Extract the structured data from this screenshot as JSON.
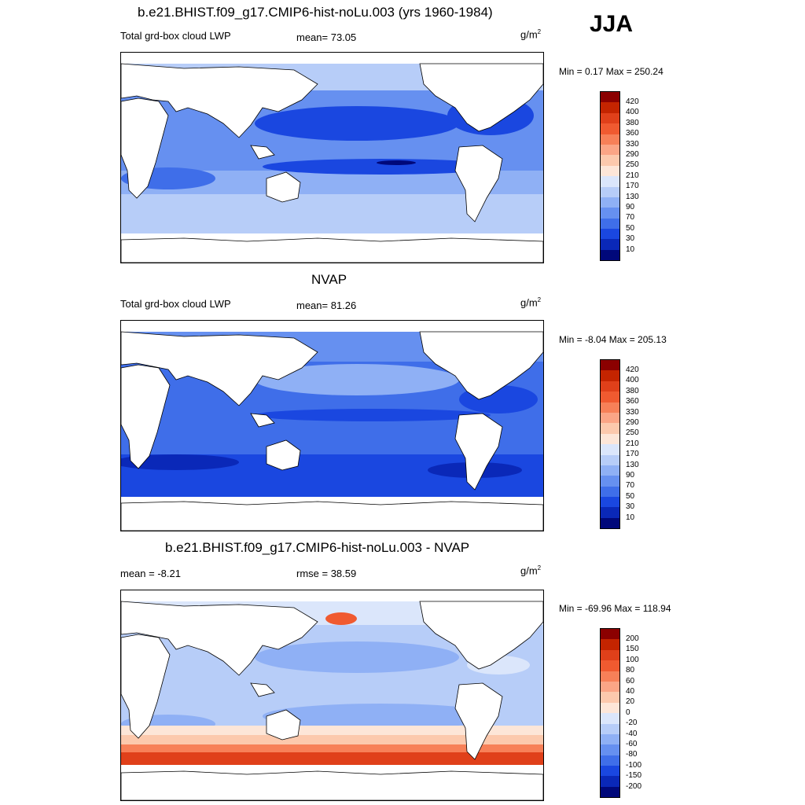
{
  "season": "JJA",
  "panels": [
    {
      "title": "b.e21.BHIST.f09_g17.CMIP6-hist-noLu.003 (yrs 1960-1984)",
      "left_label": "Total grd-box cloud LWP",
      "center_label": "mean=  73.05",
      "units": "g/m",
      "units_sup": "2",
      "minmax": "Min =   0.17 Max = 250.24",
      "colorbar_levels": [
        "420",
        "400",
        "380",
        "360",
        "330",
        "290",
        "250",
        "210",
        "170",
        "130",
        "90",
        "70",
        "50",
        "30",
        "10"
      ],
      "colors": [
        "#8b0000",
        "#c42400",
        "#e0401a",
        "#f05a30",
        "#f78058",
        "#fba586",
        "#fcc9ad",
        "#fde6d8",
        "#dbe6fb",
        "#b7cdf8",
        "#8fb0f5",
        "#6690f0",
        "#3f6ee9",
        "#1a47e0",
        "#0a28b8",
        "#00087a"
      ]
    },
    {
      "title": "NVAP",
      "left_label": "Total grd-box cloud LWP",
      "center_label": "mean=  81.26",
      "units": "g/m",
      "units_sup": "2",
      "minmax": "Min =  -8.04 Max = 205.13",
      "colorbar_levels": [
        "420",
        "400",
        "380",
        "360",
        "330",
        "290",
        "250",
        "210",
        "170",
        "130",
        "90",
        "70",
        "50",
        "30",
        "10"
      ],
      "colors": [
        "#8b0000",
        "#c42400",
        "#e0401a",
        "#f05a30",
        "#f78058",
        "#fba586",
        "#fcc9ad",
        "#fde6d8",
        "#dbe6fb",
        "#b7cdf8",
        "#8fb0f5",
        "#6690f0",
        "#3f6ee9",
        "#1a47e0",
        "#0a28b8",
        "#00087a"
      ]
    },
    {
      "title": "b.e21.BHIST.f09_g17.CMIP6-hist-noLu.003 - NVAP",
      "left_label": "mean =  -8.21",
      "center_label": "rmse =  38.59",
      "units": "g/m",
      "units_sup": "2",
      "minmax": "Min = -69.96 Max = 118.94",
      "colorbar_levels": [
        "200",
        "150",
        "100",
        "80",
        "60",
        "40",
        "20",
        "0",
        "-20",
        "-40",
        "-60",
        "-80",
        "-100",
        "-150",
        "-200"
      ],
      "colors": [
        "#8b0000",
        "#c42400",
        "#e0401a",
        "#f05a30",
        "#f78058",
        "#fba586",
        "#fcc9ad",
        "#fde6d8",
        "#dbe6fb",
        "#b7cdf8",
        "#8fb0f5",
        "#6690f0",
        "#3f6ee9",
        "#1a47e0",
        "#0a28b8",
        "#00087a"
      ]
    }
  ]
}
